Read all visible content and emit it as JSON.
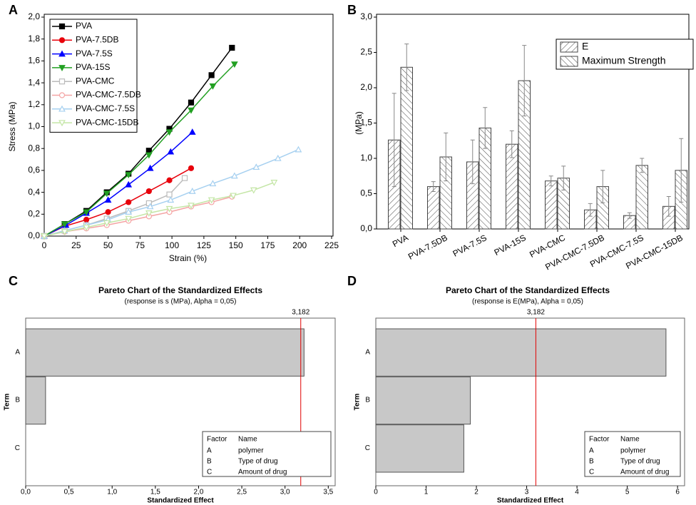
{
  "chart_data": [
    {
      "type": "line",
      "panel_label": "A",
      "xlabel": "Strain (%)",
      "ylabel": "Stress (MPa)",
      "xlim": [
        0,
        225
      ],
      "xticks": [
        0,
        25,
        50,
        75,
        100,
        125,
        150,
        175,
        200,
        225
      ],
      "ylim": [
        0,
        2.0
      ],
      "yticks": [
        {
          "value": 0,
          "label": "0,0"
        },
        {
          "value": 0.2,
          "label": "0,2"
        },
        {
          "value": 0.4,
          "label": "0,4"
        },
        {
          "value": 0.6,
          "label": "0,6"
        },
        {
          "value": 0.8,
          "label": "0,8"
        },
        {
          "value": 1.0,
          "label": "1,0"
        },
        {
          "value": 1.2,
          "label": "1,2"
        },
        {
          "value": 1.4,
          "label": "1,4"
        },
        {
          "value": 1.6,
          "label": "1,6"
        },
        {
          "value": 1.8,
          "label": "1,8"
        },
        {
          "value": 2.0,
          "label": "2,0"
        }
      ],
      "legend": "upper left",
      "series": [
        {
          "name": "PVA",
          "color": "#000000",
          "marker": "square",
          "filled": true,
          "x": [
            0,
            16,
            33,
            49,
            66,
            82,
            98,
            115,
            131,
            147
          ],
          "values": [
            0,
            0.11,
            0.23,
            0.4,
            0.57,
            0.78,
            0.98,
            1.22,
            1.47,
            1.72
          ]
        },
        {
          "name": "PVA-7.5DB",
          "color": "#e8000b",
          "marker": "circle",
          "filled": true,
          "x": [
            0,
            16,
            33,
            50,
            66,
            82,
            98,
            115
          ],
          "values": [
            0,
            0.09,
            0.15,
            0.22,
            0.31,
            0.41,
            0.51,
            0.62
          ]
        },
        {
          "name": "PVA-7.5S",
          "color": "#0000ff",
          "marker": "triangle",
          "filled": true,
          "x": [
            0,
            17,
            33,
            50,
            66,
            83,
            99,
            116
          ],
          "values": [
            0,
            0.1,
            0.21,
            0.33,
            0.47,
            0.62,
            0.77,
            0.95
          ]
        },
        {
          "name": "PVA-15S",
          "color": "#22a022",
          "marker": "triangle-down",
          "filled": true,
          "x": [
            0,
            16,
            33,
            49,
            66,
            82,
            98,
            115,
            132,
            149
          ],
          "values": [
            0,
            0.11,
            0.22,
            0.39,
            0.56,
            0.74,
            0.95,
            1.15,
            1.37,
            1.57
          ]
        },
        {
          "name": "PVA-CMC",
          "color": "#bbbbbb",
          "marker": "square",
          "filled": false,
          "x": [
            0,
            16,
            33,
            49,
            66,
            82,
            98,
            110
          ],
          "values": [
            0,
            0.05,
            0.1,
            0.16,
            0.23,
            0.3,
            0.38,
            0.53
          ]
        },
        {
          "name": "PVA-CMC-7.5DB",
          "color": "#f4a4a4",
          "marker": "circle",
          "filled": false,
          "x": [
            0,
            16,
            33,
            49,
            66,
            82,
            98,
            115,
            131,
            147
          ],
          "values": [
            0,
            0.04,
            0.07,
            0.1,
            0.14,
            0.18,
            0.22,
            0.27,
            0.31,
            0.36
          ]
        },
        {
          "name": "PVA-CMC-7.5S",
          "color": "#a6d0f0",
          "marker": "triangle",
          "filled": false,
          "x": [
            0,
            16,
            33,
            50,
            66,
            83,
            99,
            116,
            132,
            149,
            166,
            183,
            199
          ],
          "values": [
            0,
            0.05,
            0.1,
            0.15,
            0.22,
            0.27,
            0.33,
            0.41,
            0.48,
            0.55,
            0.63,
            0.71,
            0.79
          ]
        },
        {
          "name": "PVA-CMC-15DB",
          "color": "#c4e6a6",
          "marker": "triangle-down",
          "filled": false,
          "x": [
            0,
            16,
            33,
            49,
            66,
            82,
            98,
            115,
            131,
            148,
            164,
            180
          ],
          "values": [
            0,
            0.04,
            0.08,
            0.12,
            0.16,
            0.21,
            0.25,
            0.28,
            0.33,
            0.37,
            0.42,
            0.49
          ]
        }
      ]
    },
    {
      "type": "bar",
      "panel_label": "B",
      "ylabel": "(MPa)",
      "categories": [
        "PVA",
        "PVA-7.5DB",
        "PVA-7.5S",
        "PVA-15S",
        "PVA-CMC",
        "PVA-CMC-7.5DB",
        "PVA-CMC-7.5S",
        "PVA-CMC-15DB"
      ],
      "ylim": [
        0,
        3.0
      ],
      "yticks": [
        {
          "value": 0,
          "label": "0,0"
        },
        {
          "value": 0.5,
          "label": "0,5"
        },
        {
          "value": 1.0,
          "label": "1,0"
        },
        {
          "value": 1.5,
          "label": "1,5"
        },
        {
          "value": 2.0,
          "label": "2,0"
        },
        {
          "value": 2.5,
          "label": "2,5"
        },
        {
          "value": 3.0,
          "label": "3,0"
        }
      ],
      "legend": "upper right",
      "series": [
        {
          "name": "E",
          "color": "#444444",
          "hatch": "forward",
          "values": [
            1.26,
            0.6,
            0.95,
            1.2,
            0.68,
            0.27,
            0.19,
            0.32
          ],
          "errors": [
            0.66,
            0.07,
            0.31,
            0.19,
            0.07,
            0.09,
            0.04,
            0.14
          ]
        },
        {
          "name": "Maximum Strength",
          "color": "#444444",
          "hatch": "backward",
          "values": [
            2.29,
            1.02,
            1.43,
            2.1,
            0.72,
            0.6,
            0.9,
            0.83
          ],
          "errors": [
            0.33,
            0.34,
            0.29,
            0.5,
            0.17,
            0.23,
            0.1,
            0.45
          ]
        }
      ]
    },
    {
      "type": "pareto",
      "panel_label": "C",
      "title": "Pareto Chart of the Standardized Effects",
      "subtitle": "(response is s (MPa), Alpha = 0,05)",
      "xlabel": "Standardized Effect",
      "ylabel": "Term",
      "categories": [
        "A",
        "B",
        "C"
      ],
      "values": [
        3.22,
        0.23,
        0
      ],
      "color": "#c8c8c8",
      "xlim": [
        0,
        3.58
      ],
      "xticks": [
        {
          "value": 0,
          "label": "0,0"
        },
        {
          "value": 0.5,
          "label": "0,5"
        },
        {
          "value": 1.0,
          "label": "1,0"
        },
        {
          "value": 1.5,
          "label": "1,5"
        },
        {
          "value": 2.0,
          "label": "2,0"
        },
        {
          "value": 2.5,
          "label": "2,5"
        },
        {
          "value": 3.0,
          "label": "3,0"
        },
        {
          "value": 3.5,
          "label": "3,5"
        }
      ],
      "reference": {
        "value": 3.182,
        "label": "3,182"
      },
      "reference_color": "#e00000",
      "factor_table": {
        "header": [
          "Factor",
          "Name"
        ],
        "rows": [
          [
            "A",
            "polymer"
          ],
          [
            "B",
            "Type of drug"
          ],
          [
            "C",
            "Amount of drug"
          ]
        ]
      }
    },
    {
      "type": "pareto",
      "panel_label": "D",
      "title": "Pareto Chart of the Standardized Effects",
      "subtitle": "(response is E(MPa), Alpha = 0,05)",
      "xlabel": "Standardized Effect",
      "ylabel": "Term",
      "categories": [
        "A",
        "B",
        "C"
      ],
      "values": [
        5.77,
        1.88,
        1.75
      ],
      "color": "#c8c8c8",
      "xlim": [
        0,
        6.14
      ],
      "xticks": [
        0,
        1,
        2,
        3,
        4,
        5,
        6
      ],
      "reference": {
        "value": 3.182,
        "label": "3,182"
      },
      "reference_color": "#e00000",
      "factor_table": {
        "header": [
          "Factor",
          "Name"
        ],
        "rows": [
          [
            "A",
            "polymer"
          ],
          [
            "B",
            "Type of drug"
          ],
          [
            "C",
            "Amount of drug"
          ]
        ]
      }
    }
  ]
}
